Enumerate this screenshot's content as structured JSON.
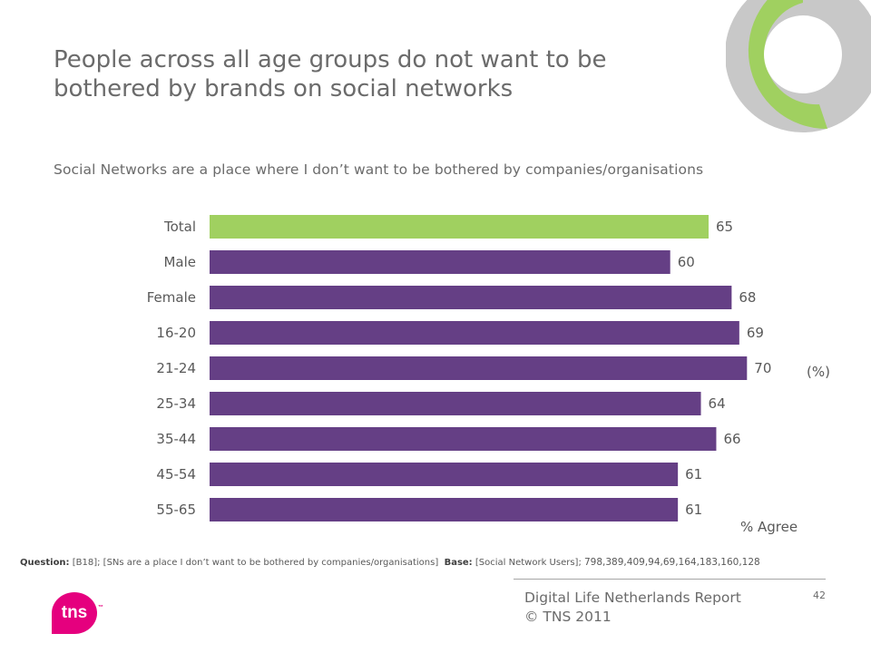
{
  "header": {
    "title_line1": "People across all age groups do not want to be",
    "title_line2": "bothered by brands on social networks",
    "subtitle": "Social Networks are a place where I don’t want to be bothered by companies/organisations"
  },
  "chart_data": {
    "type": "bar",
    "orientation": "horizontal",
    "categories": [
      "Total",
      "Male",
      "Female",
      "16-20",
      "21-24",
      "25-34",
      "35-44",
      "45-54",
      "55-65"
    ],
    "values": [
      65,
      60,
      68,
      69,
      70,
      64,
      66,
      61,
      61
    ],
    "xlabel": "% Agree",
    "unit": "(%)",
    "highlight_category": "Total",
    "colors": {
      "highlight": "#a0d060",
      "default": "#653f85"
    },
    "data_labels": true,
    "grid": false
  },
  "footnote": {
    "question_label": "Question:",
    "question_text": "[B18]; [SNs are a place I don’t want to be bothered by companies/organisations]",
    "base_label": "Base:",
    "base_text": "[Social Network Users];",
    "base_numbers": "798,389,409,94,69,164,183,160,128"
  },
  "footer": {
    "report_line1": "Digital Life  Netherlands  Report",
    "report_line2": "© TNS 2011",
    "page_number": "42",
    "logo_text": "tns",
    "logo_tm": "™"
  },
  "decoration": {
    "donut_colors": {
      "green": "#a0d060",
      "grey": "#c8c8c8"
    }
  }
}
